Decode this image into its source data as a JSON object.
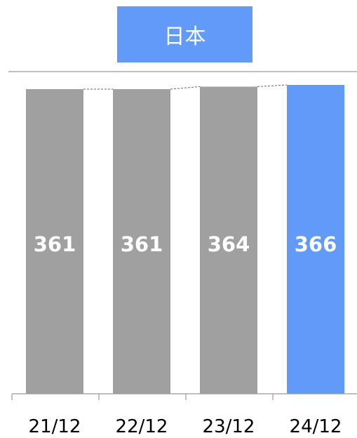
{
  "title": "日本",
  "colors": {
    "primary": "#619af8",
    "bar_gray": "#a0a0a0",
    "axis": "#999999",
    "connector": "#666666"
  },
  "chart_data": {
    "type": "bar",
    "title": "日本",
    "categories": [
      "21/12",
      "22/12",
      "23/12",
      "24/12"
    ],
    "values": [
      361,
      361,
      364,
      366
    ],
    "highlight_index": 3,
    "data_labels": true,
    "connector_lines": true,
    "xlabel": "",
    "ylabel": "",
    "y_axis_visible": false,
    "grid": false
  }
}
